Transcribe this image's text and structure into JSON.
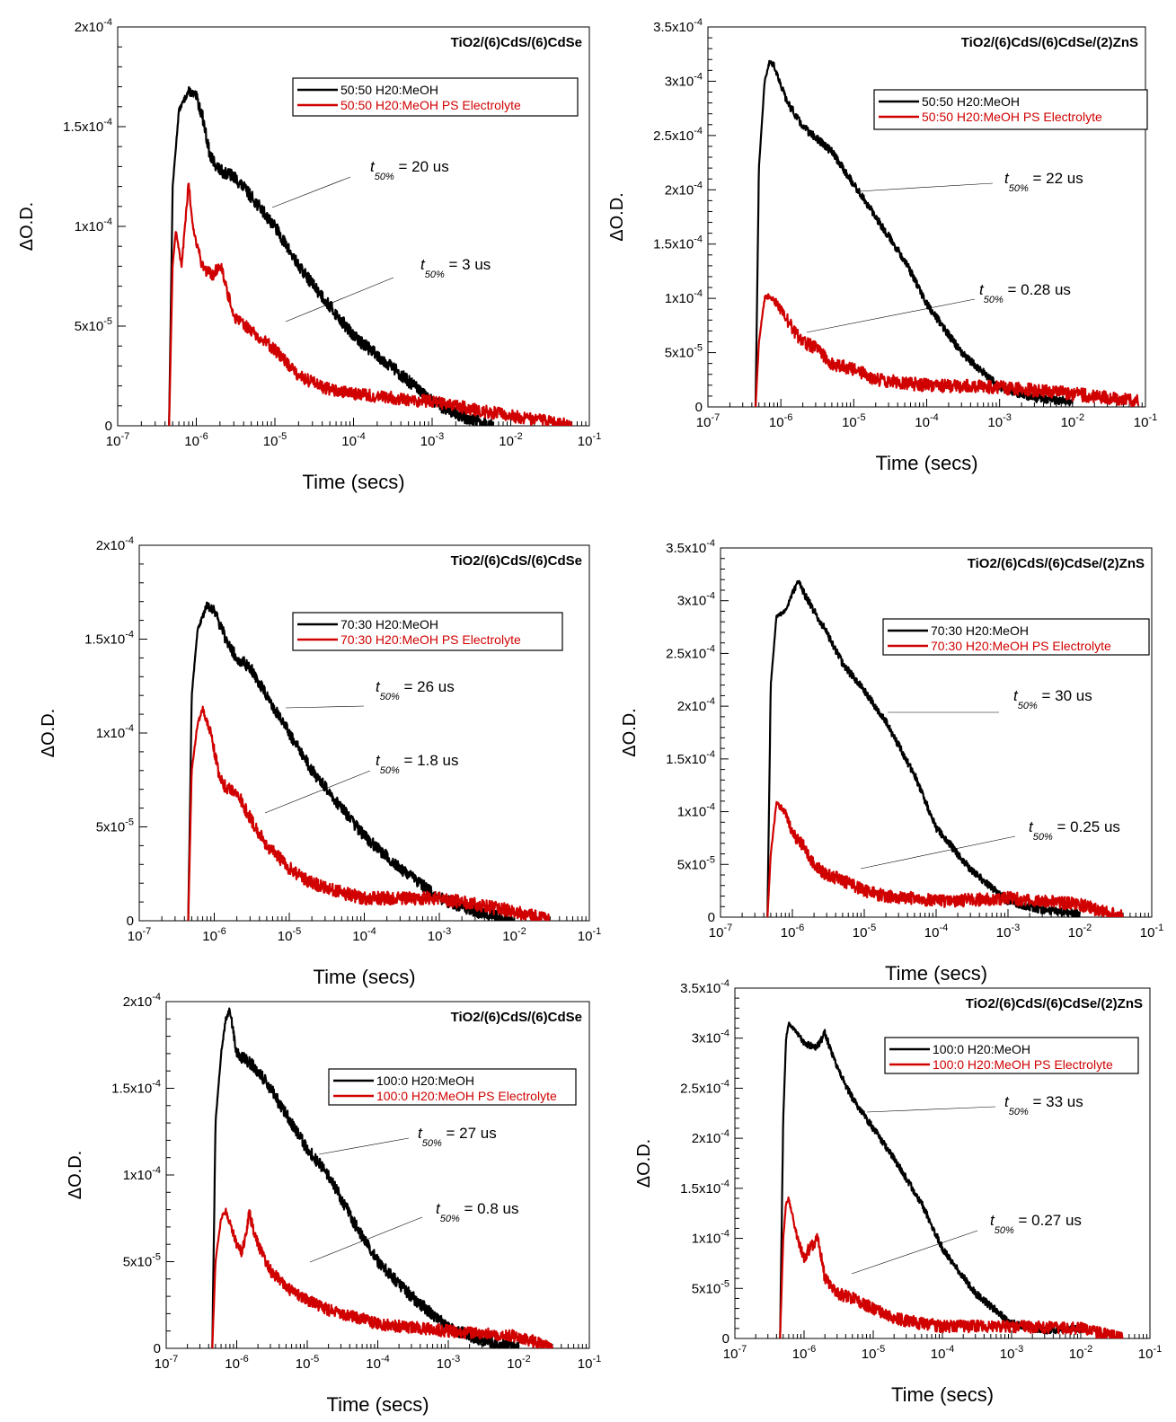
{
  "chart_data": [
    {
      "type": "line",
      "title": "TiO2/(6)CdS/(6)CdSe",
      "xlabel": "Time (secs)",
      "ylabel": "ΔO.D.",
      "x_scale": "log",
      "xlim": [
        1e-07,
        0.1
      ],
      "ylim": [
        0,
        0.0002
      ],
      "grid": false,
      "legend_position": "top-right",
      "x_ticks": [
        {
          "m": "10",
          "e": "-7"
        },
        {
          "m": "10",
          "e": "-6"
        },
        {
          "m": "10",
          "e": "-5"
        },
        {
          "m": "10",
          "e": "-4"
        },
        {
          "m": "10",
          "e": "-3"
        },
        {
          "m": "10",
          "e": "-2"
        },
        {
          "m": "10",
          "e": "-1"
        }
      ],
      "y_ticks": [
        {
          "v": 0,
          "m": "0",
          "e": ""
        },
        {
          "v": 5e-05,
          "m": "5x10",
          "e": "-5"
        },
        {
          "v": 0.0001,
          "m": "1x10",
          "e": "-4"
        },
        {
          "v": 0.00015,
          "m": "1.5x10",
          "e": "-4"
        },
        {
          "v": 0.0002,
          "m": "2x10",
          "e": "-4"
        }
      ],
      "series": [
        {
          "name": "50:50 H20:MeOH",
          "color": "#000000",
          "noise": 0.09,
          "x": [
            4.5e-07,
            5e-07,
            6e-07,
            8e-07,
            1e-06,
            1.2e-06,
            1.5e-06,
            2e-06,
            3e-06,
            5e-06,
            1e-05,
            2e-05,
            5e-05,
            0.0001,
            0.0003,
            0.001,
            0.003,
            0.006
          ],
          "y": [
            0,
            0.00012,
            0.000158,
            0.000168,
            0.000165,
            0.000155,
            0.000135,
            0.000128,
            0.000125,
            0.000115,
            0.0001,
            8e-05,
            6e-05,
            4.5e-05,
            3e-05,
            1.2e-05,
            3e-06,
            0
          ]
        },
        {
          "name": "50:50 H20:MeOH PS Electrolyte",
          "color": "#d00000",
          "noise": 0.09,
          "x": [
            4.5e-07,
            5e-07,
            5.5e-07,
            6.5e-07,
            8e-07,
            9e-07,
            1.2e-06,
            1.6e-06,
            2e-06,
            3e-06,
            5e-06,
            1e-05,
            2e-05,
            5e-05,
            0.0001,
            0.001,
            0.01,
            0.06
          ],
          "y": [
            0,
            8e-05,
            9.8e-05,
            8e-05,
            0.000122,
            0.0001,
            8e-05,
            7.5e-05,
            8.2e-05,
            5.5e-05,
            4.8e-05,
            3.8e-05,
            2.5e-05,
            1.8e-05,
            1.6e-05,
            1.2e-05,
            5e-06,
            0
          ]
        }
      ],
      "annotations": [
        {
          "sub": "50%",
          "text": "= 20 us"
        },
        {
          "sub": "50%",
          "text": "= 3 us"
        }
      ]
    },
    {
      "type": "line",
      "title": "TiO2/(6)CdS/(6)CdSe/(2)ZnS",
      "xlabel": "Time (secs)",
      "ylabel": "ΔO.D.",
      "x_scale": "log",
      "xlim": [
        1e-07,
        0.1
      ],
      "ylim": [
        0,
        0.00035
      ],
      "grid": false,
      "legend_position": "top-right",
      "x_ticks": [
        {
          "m": "10",
          "e": "-7"
        },
        {
          "m": "10",
          "e": "-6"
        },
        {
          "m": "10",
          "e": "-5"
        },
        {
          "m": "10",
          "e": "-4"
        },
        {
          "m": "10",
          "e": "-3"
        },
        {
          "m": "10",
          "e": "-2"
        },
        {
          "m": "10",
          "e": "-1"
        }
      ],
      "y_ticks": [
        {
          "v": 0,
          "m": "0",
          "e": ""
        },
        {
          "v": 5e-05,
          "m": "5x10",
          "e": "-5"
        },
        {
          "v": 0.0001,
          "m": "1x10",
          "e": "-4"
        },
        {
          "v": 0.00015,
          "m": "1.5x10",
          "e": "-4"
        },
        {
          "v": 0.0002,
          "m": "2x10",
          "e": "-4"
        },
        {
          "v": 0.00025,
          "m": "2.5x10",
          "e": "-4"
        },
        {
          "v": 0.0003,
          "m": "3x10",
          "e": "-4"
        },
        {
          "v": 0.00035,
          "m": "3.5x10",
          "e": "-4"
        }
      ],
      "series": [
        {
          "name": "50:50 H20:MeOH",
          "color": "#000000",
          "noise": 0.06,
          "x": [
            4.5e-07,
            5e-07,
            6e-07,
            7e-07,
            8e-07,
            1.2e-06,
            2e-06,
            3e-06,
            5e-06,
            1e-05,
            2e-05,
            5e-05,
            0.0001,
            0.0003,
            0.001,
            0.003,
            0.01
          ],
          "y": [
            0,
            0.00022,
            0.0003,
            0.000318,
            0.000315,
            0.000282,
            0.000258,
            0.000248,
            0.000235,
            0.000205,
            0.000175,
            0.000135,
            9.5e-05,
            5e-05,
            1.8e-05,
            8e-06,
            5e-06
          ]
        },
        {
          "name": "50:50 H20:MeOH PS Electrolyte",
          "color": "#d00000",
          "noise": 0.1,
          "x": [
            4.5e-07,
            5e-07,
            6e-07,
            7e-07,
            1e-06,
            1.5e-06,
            2e-06,
            3e-06,
            5e-06,
            1e-05,
            2e-05,
            5e-05,
            0.0001,
            0.001,
            0.01,
            0.08
          ],
          "y": [
            0,
            6e-05,
            0.0001,
            0.000103,
            9e-05,
            7e-05,
            6e-05,
            5.5e-05,
            4e-05,
            3.5e-05,
            2.5e-05,
            2.2e-05,
            2e-05,
            1.8e-05,
            1.2e-05,
            5e-06
          ]
        }
      ],
      "annotations": [
        {
          "sub": "50%",
          "text": "= 22 us"
        },
        {
          "sub": "50%",
          "text": "= 0.28 us"
        }
      ]
    },
    {
      "type": "line",
      "title": "TiO2/(6)CdS/(6)CdSe",
      "xlabel": "Time (secs)",
      "ylabel": "ΔO.D.",
      "x_scale": "log",
      "xlim": [
        1e-07,
        0.1
      ],
      "ylim": [
        0,
        0.0002
      ],
      "grid": false,
      "legend_position": "top-right",
      "x_ticks": [
        {
          "m": "10",
          "e": "-7"
        },
        {
          "m": "10",
          "e": "-6"
        },
        {
          "m": "10",
          "e": "-5"
        },
        {
          "m": "10",
          "e": "-4"
        },
        {
          "m": "10",
          "e": "-3"
        },
        {
          "m": "10",
          "e": "-2"
        },
        {
          "m": "10",
          "e": "-1"
        }
      ],
      "y_ticks": [
        {
          "v": 0,
          "m": "0",
          "e": ""
        },
        {
          "v": 5e-05,
          "m": "5x10",
          "e": "-5"
        },
        {
          "v": 0.0001,
          "m": "1x10",
          "e": "-4"
        },
        {
          "v": 0.00015,
          "m": "1.5x10",
          "e": "-4"
        },
        {
          "v": 0.0002,
          "m": "2x10",
          "e": "-4"
        }
      ],
      "series": [
        {
          "name": "70:30 H20:MeOH",
          "color": "#000000",
          "noise": 0.09,
          "x": [
            4.5e-07,
            5e-07,
            6e-07,
            8e-07,
            1e-06,
            1.5e-06,
            2e-06,
            3e-06,
            5e-06,
            1e-05,
            2e-05,
            5e-05,
            0.0001,
            0.0003,
            0.001,
            0.003,
            0.01
          ],
          "y": [
            0,
            0.00012,
            0.000155,
            0.000168,
            0.000165,
            0.000148,
            0.00014,
            0.000135,
            0.00012,
            0.0001,
            8e-05,
            6e-05,
            4.5e-05,
            2.8e-05,
            1.2e-05,
            5e-06,
            0
          ]
        },
        {
          "name": "70:30 H20:MeOH PS Electrolyte",
          "color": "#d00000",
          "noise": 0.1,
          "x": [
            4.5e-07,
            5e-07,
            6e-07,
            7e-07,
            9e-07,
            1.2e-06,
            1.5e-06,
            2e-06,
            3e-06,
            5e-06,
            1e-05,
            2e-05,
            5e-05,
            0.0001,
            0.001,
            0.01,
            0.03
          ],
          "y": [
            0,
            8e-05,
            0.000105,
            0.000113,
            0.0001,
            7.5e-05,
            7e-05,
            6.8e-05,
            5.5e-05,
            4e-05,
            2.8e-05,
            2e-05,
            1.5e-05,
            1.2e-05,
            1.2e-05,
            5e-06,
            0
          ]
        }
      ],
      "annotations": [
        {
          "sub": "50%",
          "text": "= 26 us"
        },
        {
          "sub": "50%",
          "text": "= 1.8 us"
        }
      ]
    },
    {
      "type": "line",
      "title": "TiO2/(6)CdS/(6)CdSe/(2)ZnS",
      "xlabel": "Time (secs)",
      "ylabel": "ΔO.D.",
      "x_scale": "log",
      "xlim": [
        1e-07,
        0.1
      ],
      "ylim": [
        0,
        0.00035
      ],
      "grid": false,
      "legend_position": "top-right",
      "x_ticks": [
        {
          "m": "10",
          "e": "-7"
        },
        {
          "m": "10",
          "e": "-6"
        },
        {
          "m": "10",
          "e": "-5"
        },
        {
          "m": "10",
          "e": "-4"
        },
        {
          "m": "10",
          "e": "-3"
        },
        {
          "m": "10",
          "e": "-2"
        },
        {
          "m": "10",
          "e": "-1"
        }
      ],
      "y_ticks": [
        {
          "v": 0,
          "m": "0",
          "e": ""
        },
        {
          "v": 5e-05,
          "m": "5x10",
          "e": "-5"
        },
        {
          "v": 0.0001,
          "m": "1x10",
          "e": "-4"
        },
        {
          "v": 0.00015,
          "m": "1.5x10",
          "e": "-4"
        },
        {
          "v": 0.0002,
          "m": "2x10",
          "e": "-4"
        },
        {
          "v": 0.00025,
          "m": "2.5x10",
          "e": "-4"
        },
        {
          "v": 0.0003,
          "m": "3x10",
          "e": "-4"
        },
        {
          "v": 0.00035,
          "m": "3.5x10",
          "e": "-4"
        }
      ],
      "series": [
        {
          "name": "70:30 H20:MeOH",
          "color": "#000000",
          "noise": 0.06,
          "x": [
            4.5e-07,
            5e-07,
            6e-07,
            8e-07,
            1.2e-06,
            1.5e-06,
            2e-06,
            3e-06,
            5e-06,
            1e-05,
            2e-05,
            5e-05,
            0.0001,
            0.0003,
            0.001,
            0.003,
            0.01
          ],
          "y": [
            0,
            0.00022,
            0.000285,
            0.00029,
            0.00032,
            0.000305,
            0.00029,
            0.00027,
            0.00024,
            0.000215,
            0.000185,
            0.000135,
            8.5e-05,
            4.5e-05,
            1.5e-05,
            7e-06,
            3e-06
          ]
        },
        {
          "name": "70:30 H20:MeOH PS Electrolyte",
          "color": "#d00000",
          "noise": 0.1,
          "x": [
            4.5e-07,
            5e-07,
            6e-07,
            8e-07,
            1e-06,
            1.5e-06,
            2e-06,
            3e-06,
            5e-06,
            1e-05,
            2e-05,
            5e-05,
            0.0001,
            0.001,
            0.01,
            0.04
          ],
          "y": [
            0,
            6e-05,
            0.000108,
            0.0001,
            8e-05,
            6.5e-05,
            5e-05,
            4e-05,
            3.5e-05,
            2.5e-05,
            2e-05,
            1.8e-05,
            1.5e-05,
            1.8e-05,
            1.2e-05,
            0
          ]
        }
      ],
      "annotations": [
        {
          "sub": "50%",
          "text": "= 30 us"
        },
        {
          "sub": "50%",
          "text": "= 0.25 us"
        }
      ]
    },
    {
      "type": "line",
      "title": "TiO2/(6)CdS/(6)CdSe",
      "xlabel": "Time (secs)",
      "ylabel": "ΔO.D.",
      "x_scale": "log",
      "xlim": [
        1e-07,
        0.1
      ],
      "ylim": [
        0,
        0.0002
      ],
      "grid": false,
      "legend_position": "top-right",
      "x_ticks": [
        {
          "m": "10",
          "e": "-7"
        },
        {
          "m": "10",
          "e": "-6"
        },
        {
          "m": "10",
          "e": "-5"
        },
        {
          "m": "10",
          "e": "-4"
        },
        {
          "m": "10",
          "e": "-3"
        },
        {
          "m": "10",
          "e": "-2"
        },
        {
          "m": "10",
          "e": "-1"
        }
      ],
      "y_ticks": [
        {
          "v": 0,
          "m": "0",
          "e": ""
        },
        {
          "v": 5e-05,
          "m": "5x10",
          "e": "-5"
        },
        {
          "v": 0.0001,
          "m": "1x10",
          "e": "-4"
        },
        {
          "v": 0.00015,
          "m": "1.5x10",
          "e": "-4"
        },
        {
          "v": 0.0002,
          "m": "2x10",
          "e": "-4"
        }
      ],
      "series": [
        {
          "name": "100:0 H20:MeOH",
          "color": "#000000",
          "noise": 0.1,
          "x": [
            4.5e-07,
            5e-07,
            6e-07,
            7e-07,
            8e-07,
            1e-06,
            1.5e-06,
            2e-06,
            3e-06,
            5e-06,
            1e-05,
            2e-05,
            5e-05,
            0.0001,
            0.0003,
            0.001,
            0.003,
            0.01
          ],
          "y": [
            0,
            0.00013,
            0.00017,
            0.00019,
            0.000195,
            0.00017,
            0.000165,
            0.00016,
            0.00015,
            0.000135,
            0.000115,
            0.0001,
            7e-05,
            5e-05,
            3e-05,
            1.2e-05,
            5e-06,
            0
          ]
        },
        {
          "name": "100:0 H20:MeOH PS Electrolyte",
          "color": "#d00000",
          "noise": 0.1,
          "x": [
            4.5e-07,
            5e-07,
            6e-07,
            7e-07,
            1e-06,
            1.2e-06,
            1.5e-06,
            2e-06,
            3e-06,
            5e-06,
            1e-05,
            2e-05,
            5e-05,
            0.0001,
            0.001,
            0.01,
            0.03
          ],
          "y": [
            0,
            5e-05,
            7.5e-05,
            7.9e-05,
            6e-05,
            5.5e-05,
            7.8e-05,
            6e-05,
            4.5e-05,
            3.5e-05,
            2.8e-05,
            2.2e-05,
            1.8e-05,
            1.4e-05,
            1e-05,
            7e-06,
            0
          ]
        }
      ],
      "annotations": [
        {
          "sub": "50%",
          "text": "= 27 us"
        },
        {
          "sub": "50%",
          "text": "= 0.8 us"
        }
      ]
    },
    {
      "type": "line",
      "title": "TiO2/(6)CdS/(6)CdSe/(2)ZnS",
      "xlabel": "Time (secs)",
      "ylabel": "ΔO.D.",
      "x_scale": "log",
      "xlim": [
        1e-07,
        0.1
      ],
      "ylim": [
        0,
        0.00035
      ],
      "grid": false,
      "legend_position": "top-right",
      "x_ticks": [
        {
          "m": "10",
          "e": "-7"
        },
        {
          "m": "10",
          "e": "-6"
        },
        {
          "m": "10",
          "e": "-5"
        },
        {
          "m": "10",
          "e": "-4"
        },
        {
          "m": "10",
          "e": "-3"
        },
        {
          "m": "10",
          "e": "-2"
        },
        {
          "m": "10",
          "e": "-1"
        }
      ],
      "y_ticks": [
        {
          "v": 0,
          "m": "0",
          "e": ""
        },
        {
          "v": 5e-05,
          "m": "5x10",
          "e": "-5"
        },
        {
          "v": 0.0001,
          "m": "1x10",
          "e": "-4"
        },
        {
          "v": 0.00015,
          "m": "1.5x10",
          "e": "-4"
        },
        {
          "v": 0.0002,
          "m": "2x10",
          "e": "-4"
        },
        {
          "v": 0.00025,
          "m": "2.5x10",
          "e": "-4"
        },
        {
          "v": 0.0003,
          "m": "3x10",
          "e": "-4"
        },
        {
          "v": 0.00035,
          "m": "3.5x10",
          "e": "-4"
        }
      ],
      "series": [
        {
          "name": "100:0 H20:MeOH",
          "color": "#000000",
          "noise": 0.06,
          "x": [
            4.5e-07,
            5e-07,
            5.5e-07,
            6e-07,
            8e-07,
            1e-06,
            1.5e-06,
            2e-06,
            3e-06,
            5e-06,
            1e-05,
            2e-05,
            5e-05,
            0.0001,
            0.0003,
            0.001,
            0.003,
            0.01
          ],
          "y": [
            0,
            0.00022,
            0.0003,
            0.000315,
            0.000305,
            0.000295,
            0.00029,
            0.000305,
            0.00027,
            0.00024,
            0.00021,
            0.00018,
            0.000135,
            9e-05,
            4.5e-05,
            1.5e-05,
            8e-06,
            1e-05
          ]
        },
        {
          "name": "100:0 H20:MeOH PS Electrolyte",
          "color": "#d00000",
          "noise": 0.1,
          "x": [
            4.5e-07,
            5e-07,
            5.5e-07,
            6e-07,
            8e-07,
            1e-06,
            1.2e-06,
            1.6e-06,
            2e-06,
            3e-06,
            5e-06,
            1e-05,
            2e-05,
            5e-05,
            0.0001,
            0.001,
            0.01,
            0.04
          ],
          "y": [
            0,
            0.0001,
            0.000135,
            0.00014,
            0.0001,
            8e-05,
            9e-05,
            0.0001,
            6e-05,
            4.5e-05,
            4e-05,
            3e-05,
            2e-05,
            1.5e-05,
            1.2e-05,
            1.2e-05,
            1e-05,
            0
          ]
        }
      ],
      "annotations": [
        {
          "sub": "50%",
          "text": "= 33 us"
        },
        {
          "sub": "50%",
          "text": "= 0.27 us"
        }
      ]
    }
  ]
}
